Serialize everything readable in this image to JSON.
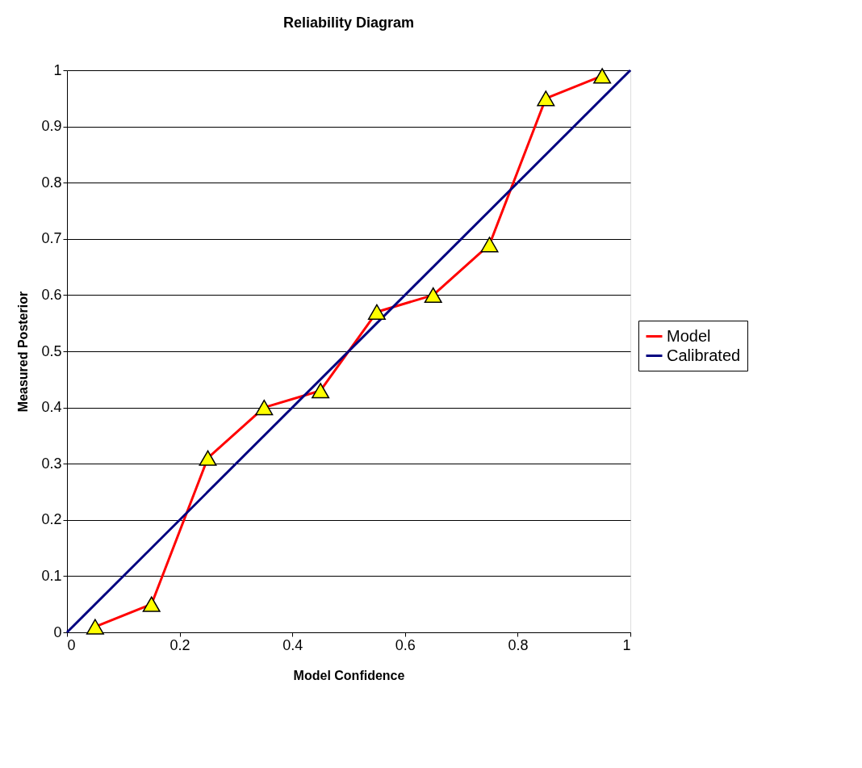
{
  "chart_data": {
    "type": "line",
    "title": "Reliability Diagram",
    "xlabel": "Model Confidence",
    "ylabel": "Measured Posterior",
    "x": [
      0.05,
      0.15,
      0.25,
      0.35,
      0.45,
      0.55,
      0.65,
      0.75,
      0.85,
      0.95
    ],
    "series": [
      {
        "name": "Model",
        "color": "#ff0000",
        "marker": "triangle",
        "values": [
          0.01,
          0.05,
          0.31,
          0.4,
          0.43,
          0.57,
          0.6,
          0.69,
          0.95,
          0.99
        ]
      },
      {
        "name": "Calibrated",
        "color": "#000080",
        "marker": "none",
        "x": [
          0,
          1
        ],
        "values": [
          0,
          1
        ]
      }
    ],
    "xlim": [
      0,
      1
    ],
    "xticks": [
      0,
      0.2,
      0.4,
      0.6,
      0.8,
      1
    ],
    "ylim": [
      0,
      1
    ],
    "yticks": [
      0,
      0.1,
      0.2,
      0.3,
      0.4,
      0.5,
      0.6,
      0.7,
      0.8,
      0.9,
      1
    ],
    "grid": "y",
    "legend": "right",
    "line_style": "solid"
  }
}
